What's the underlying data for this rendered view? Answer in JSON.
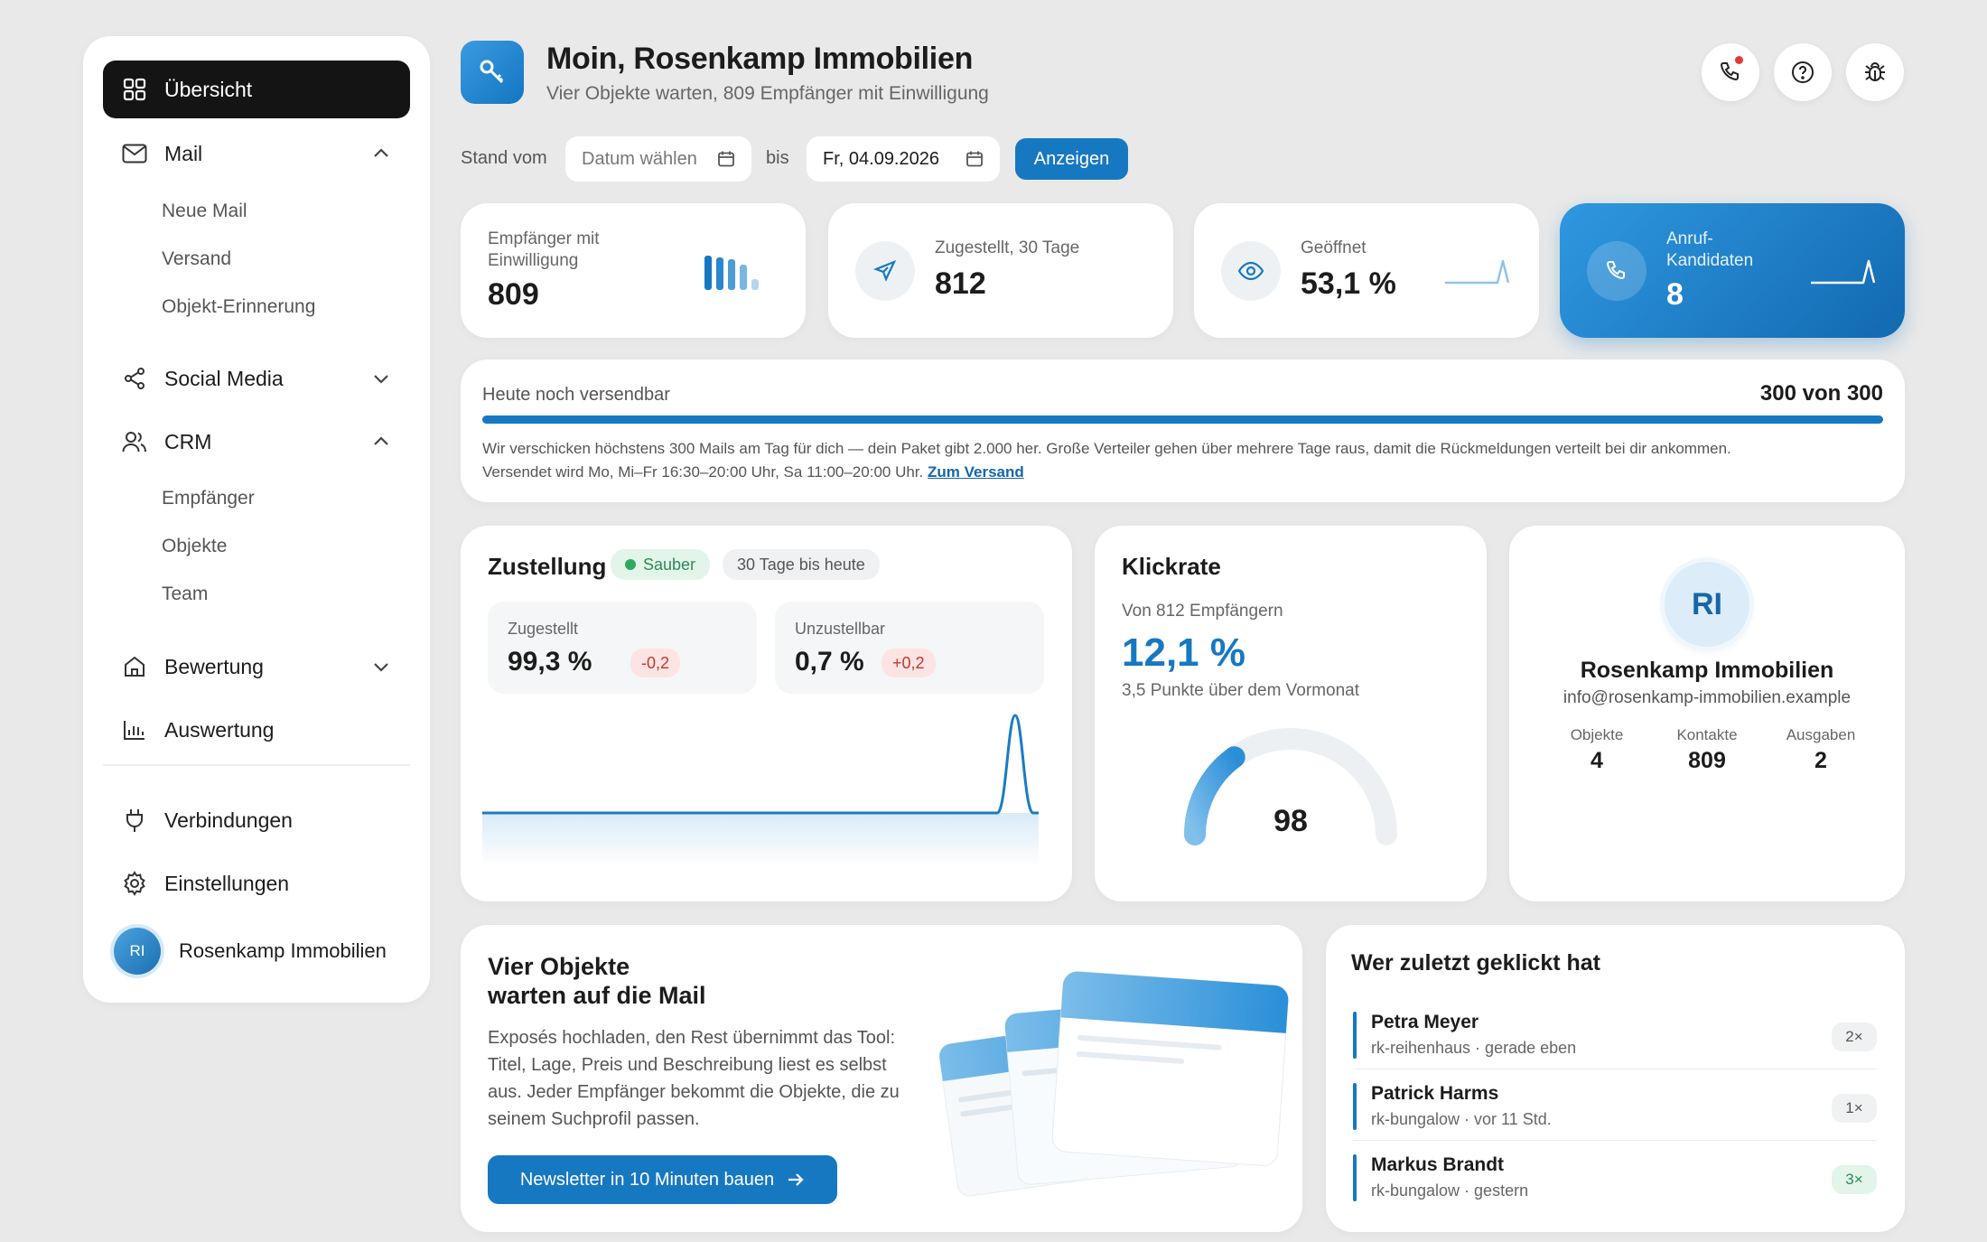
{
  "sidebar": {
    "items": [
      {
        "label": "Übersicht"
      },
      {
        "label": "Mail",
        "children": [
          "Neue Mail",
          "Versand",
          "Objekt-Erinnerung"
        ]
      },
      {
        "label": "Social Media"
      },
      {
        "label": "CRM",
        "children": [
          "Empfänger",
          "Objekte",
          "Team"
        ]
      },
      {
        "label": "Bewertung"
      },
      {
        "label": "Auswertung"
      },
      {
        "label": "Verbindungen"
      },
      {
        "label": "Einstellungen"
      }
    ],
    "user": {
      "initials": "RI",
      "name": "Rosenkamp Immobilien"
    }
  },
  "header": {
    "title": "Moin, Rosenkamp Immobilien",
    "subtitle": "Vier Objekte warten, 809 Empfänger mit Einwilligung"
  },
  "filter": {
    "stand_label": "Stand vom",
    "from_placeholder": "Datum wählen",
    "bis_label": "bis",
    "to_value": "Fr, 04.09.2026",
    "apply_label": "Anzeigen"
  },
  "stats": [
    {
      "label": "Empfänger mit Einwilligung",
      "value": "809"
    },
    {
      "label": "Zugestellt, 30 Tage",
      "value": "812"
    },
    {
      "label": "Geöffnet",
      "value": "53,1 %"
    },
    {
      "label": "Anruf-Kandidaten",
      "value": "8"
    }
  ],
  "quota": {
    "label": "Heute noch versendbar",
    "value": "300 von 300",
    "progress": 1.0,
    "text": "Wir verschicken höchstens 300 Mails am Tag für dich — dein Paket gibt 2.000 her. Große Verteiler gehen über mehrere Tage raus, damit die Rückmeldungen verteilt bei dir ankommen.",
    "text2": "Versendet wird Mo, Mi–Fr 16:30–20:00 Uhr, Sa 11:00–20:00 Uhr.",
    "link": "Zum Versand"
  },
  "delivery": {
    "title": "Zustellung",
    "status": "Sauber",
    "range": "30 Tage bis heute",
    "delivered_label": "Zugestellt",
    "delivered_value": "99,3 %",
    "delivered_delta": "-0,2",
    "bounced_label": "Unzustellbar",
    "bounced_value": "0,7 %",
    "bounced_delta": "+0,2"
  },
  "clickrate": {
    "title": "Klickrate",
    "sub": "Von 812 Empfängern",
    "value": "12,1 %",
    "compare": "3,5 Punkte über dem Vormonat",
    "gauge_value": "98",
    "gauge_fraction": 0.3
  },
  "profile": {
    "initials": "RI",
    "name": "Rosenkamp Immobilien",
    "email": "info@rosenkamp-immobilien.example",
    "stats": [
      {
        "label": "Objekte",
        "value": "4"
      },
      {
        "label": "Kontakte",
        "value": "809"
      },
      {
        "label": "Ausgaben",
        "value": "2"
      }
    ]
  },
  "promo": {
    "title_line1": "Vier Objekte",
    "title_line2": "warten auf die Mail",
    "text": "Exposés hochladen, den Rest übernimmt das Tool: Titel, Lage, Preis und Beschreibung liest es selbst aus. Jeder Empfänger bekommt die Objekte, die zu seinem Suchprofil passen.",
    "button": "Newsletter in 10 Minuten bauen"
  },
  "recent": {
    "title": "Wer zuletzt geklickt hat",
    "rows": [
      {
        "name": "Petra Meyer",
        "meta": "rk-reihenhaus · gerade eben",
        "count": "2×"
      },
      {
        "name": "Patrick Harms",
        "meta": "rk-bungalow · vor 11 Std.",
        "count": "1×"
      },
      {
        "name": "Markus Brandt",
        "meta": "rk-bungalow · gestern",
        "count": "3×"
      }
    ]
  },
  "colors": {
    "accent": "#1778c2",
    "success": "#2eaa5c",
    "danger": "#c0392b"
  }
}
